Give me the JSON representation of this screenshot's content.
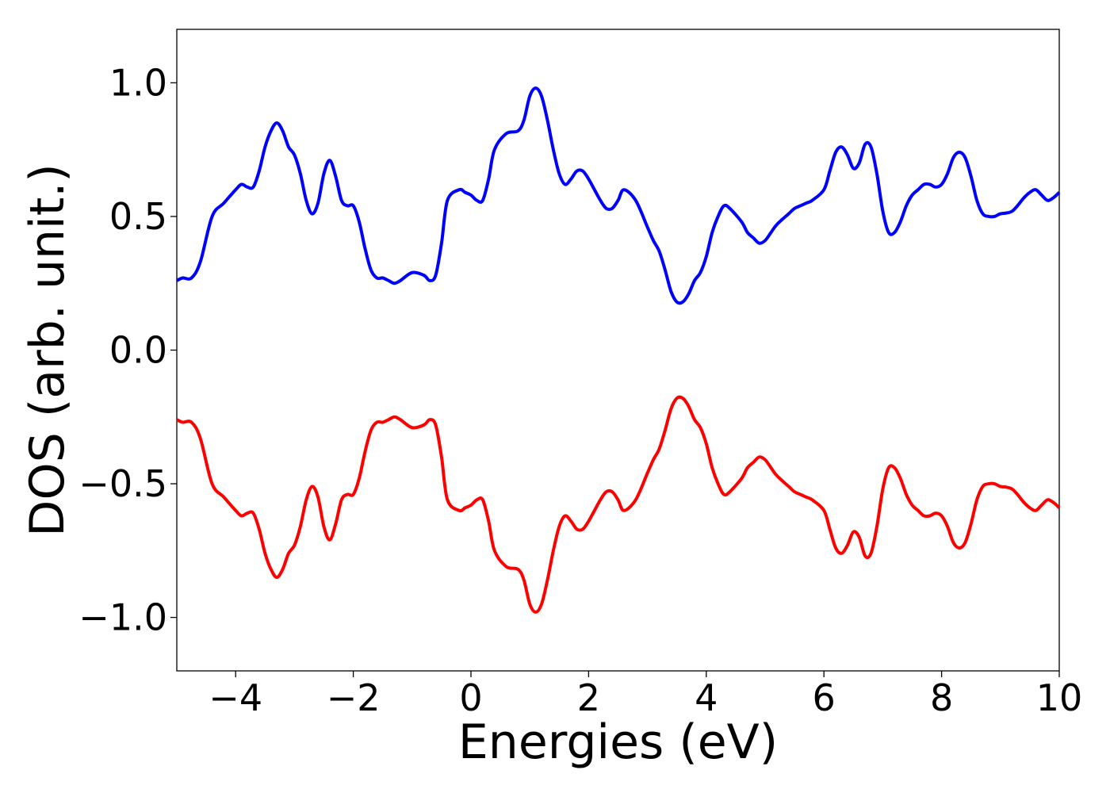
{
  "chart_data": {
    "type": "line",
    "title": "",
    "xlabel": "Energies (eV)",
    "ylabel": "DOS (arb. unit.)",
    "xlim": [
      -5,
      10
    ],
    "ylim": [
      -1.2,
      1.2
    ],
    "xticks": [
      -4,
      -2,
      0,
      2,
      4,
      6,
      8,
      10
    ],
    "xtick_labels": [
      "−4",
      "−2",
      "0",
      "2",
      "4",
      "6",
      "8",
      "10"
    ],
    "yticks": [
      -1.0,
      -0.5,
      0.0,
      0.5,
      1.0
    ],
    "ytick_labels": [
      "−1.0",
      "−0.5",
      "0.0",
      "0.5",
      "1.0"
    ],
    "grid": false,
    "legend": "none",
    "series": [
      {
        "color": "#0000ff",
        "x": [
          -5.0,
          -4.9,
          -4.75,
          -4.6,
          -4.4,
          -4.2,
          -4.0,
          -3.9,
          -3.8,
          -3.7,
          -3.6,
          -3.5,
          -3.4,
          -3.3,
          -3.2,
          -3.1,
          -3.0,
          -2.9,
          -2.8,
          -2.7,
          -2.6,
          -2.5,
          -2.4,
          -2.3,
          -2.2,
          -2.1,
          -2.0,
          -1.9,
          -1.8,
          -1.7,
          -1.6,
          -1.5,
          -1.4,
          -1.3,
          -1.2,
          -1.0,
          -0.8,
          -0.7,
          -0.6,
          -0.5,
          -0.4,
          -0.2,
          -0.1,
          0.0,
          0.1,
          0.2,
          0.3,
          0.4,
          0.6,
          0.8,
          0.9,
          1.0,
          1.1,
          1.2,
          1.3,
          1.4,
          1.5,
          1.6,
          1.7,
          1.8,
          1.9,
          2.0,
          2.1,
          2.2,
          2.3,
          2.4,
          2.5,
          2.6,
          2.8,
          3.0,
          3.1,
          3.2,
          3.3,
          3.4,
          3.5,
          3.6,
          3.7,
          3.8,
          3.9,
          4.0,
          4.1,
          4.2,
          4.3,
          4.4,
          4.6,
          4.7,
          4.8,
          4.9,
          5.0,
          5.1,
          5.2,
          5.4,
          5.5,
          5.6,
          5.7,
          5.8,
          6.0,
          6.1,
          6.2,
          6.3,
          6.4,
          6.5,
          6.6,
          6.7,
          6.8,
          6.9,
          7.0,
          7.1,
          7.2,
          7.3,
          7.4,
          7.5,
          7.6,
          7.7,
          7.8,
          7.9,
          8.0,
          8.1,
          8.2,
          8.3,
          8.4,
          8.5,
          8.6,
          8.7,
          8.8,
          8.9,
          9.0,
          9.2,
          9.4,
          9.5,
          9.6,
          9.7,
          9.8,
          9.9,
          10.0
        ],
        "y": [
          0.26,
          0.27,
          0.27,
          0.33,
          0.5,
          0.55,
          0.6,
          0.62,
          0.61,
          0.61,
          0.67,
          0.76,
          0.82,
          0.85,
          0.82,
          0.76,
          0.73,
          0.66,
          0.56,
          0.51,
          0.55,
          0.66,
          0.71,
          0.65,
          0.56,
          0.54,
          0.54,
          0.48,
          0.38,
          0.3,
          0.27,
          0.27,
          0.26,
          0.25,
          0.26,
          0.29,
          0.28,
          0.26,
          0.28,
          0.4,
          0.56,
          0.6,
          0.59,
          0.58,
          0.56,
          0.56,
          0.64,
          0.75,
          0.81,
          0.82,
          0.86,
          0.95,
          0.98,
          0.95,
          0.86,
          0.75,
          0.66,
          0.62,
          0.64,
          0.67,
          0.67,
          0.64,
          0.6,
          0.56,
          0.53,
          0.53,
          0.56,
          0.6,
          0.56,
          0.46,
          0.41,
          0.37,
          0.3,
          0.22,
          0.18,
          0.18,
          0.21,
          0.26,
          0.29,
          0.35,
          0.44,
          0.5,
          0.54,
          0.53,
          0.48,
          0.44,
          0.42,
          0.4,
          0.41,
          0.44,
          0.47,
          0.51,
          0.53,
          0.54,
          0.55,
          0.56,
          0.6,
          0.67,
          0.74,
          0.76,
          0.73,
          0.68,
          0.7,
          0.77,
          0.76,
          0.66,
          0.52,
          0.44,
          0.44,
          0.48,
          0.54,
          0.58,
          0.6,
          0.62,
          0.62,
          0.61,
          0.62,
          0.66,
          0.72,
          0.74,
          0.72,
          0.65,
          0.56,
          0.51,
          0.5,
          0.5,
          0.51,
          0.52,
          0.57,
          0.59,
          0.6,
          0.58,
          0.56,
          0.57,
          0.59
        ],
        "mirror": false
      },
      {
        "color": "#ff0000",
        "x": [
          -5.0,
          -4.9,
          -4.75,
          -4.6,
          -4.4,
          -4.2,
          -4.0,
          -3.9,
          -3.8,
          -3.7,
          -3.6,
          -3.5,
          -3.4,
          -3.3,
          -3.2,
          -3.1,
          -3.0,
          -2.9,
          -2.8,
          -2.7,
          -2.6,
          -2.5,
          -2.4,
          -2.3,
          -2.2,
          -2.1,
          -2.0,
          -1.9,
          -1.8,
          -1.7,
          -1.6,
          -1.5,
          -1.4,
          -1.3,
          -1.2,
          -1.0,
          -0.8,
          -0.7,
          -0.6,
          -0.5,
          -0.4,
          -0.2,
          -0.1,
          0.0,
          0.1,
          0.2,
          0.3,
          0.4,
          0.6,
          0.8,
          0.9,
          1.0,
          1.1,
          1.2,
          1.3,
          1.4,
          1.5,
          1.6,
          1.7,
          1.8,
          1.9,
          2.0,
          2.1,
          2.2,
          2.3,
          2.4,
          2.5,
          2.6,
          2.8,
          3.0,
          3.1,
          3.2,
          3.3,
          3.4,
          3.5,
          3.6,
          3.7,
          3.8,
          3.9,
          4.0,
          4.1,
          4.2,
          4.3,
          4.4,
          4.6,
          4.7,
          4.8,
          4.9,
          5.0,
          5.1,
          5.2,
          5.4,
          5.5,
          5.6,
          5.7,
          5.8,
          6.0,
          6.1,
          6.2,
          6.3,
          6.4,
          6.5,
          6.6,
          6.7,
          6.8,
          6.9,
          7.0,
          7.1,
          7.2,
          7.3,
          7.4,
          7.5,
          7.6,
          7.7,
          7.8,
          7.9,
          8.0,
          8.1,
          8.2,
          8.3,
          8.4,
          8.5,
          8.6,
          8.7,
          8.8,
          8.9,
          9.0,
          9.2,
          9.4,
          9.5,
          9.6,
          9.7,
          9.8,
          9.9,
          10.0
        ],
        "y": [
          -0.26,
          -0.27,
          -0.27,
          -0.33,
          -0.5,
          -0.55,
          -0.6,
          -0.62,
          -0.61,
          -0.61,
          -0.67,
          -0.76,
          -0.82,
          -0.85,
          -0.82,
          -0.76,
          -0.73,
          -0.66,
          -0.56,
          -0.51,
          -0.55,
          -0.66,
          -0.71,
          -0.65,
          -0.56,
          -0.54,
          -0.54,
          -0.48,
          -0.38,
          -0.3,
          -0.27,
          -0.27,
          -0.26,
          -0.25,
          -0.26,
          -0.29,
          -0.28,
          -0.26,
          -0.28,
          -0.4,
          -0.56,
          -0.6,
          -0.59,
          -0.58,
          -0.56,
          -0.56,
          -0.64,
          -0.75,
          -0.81,
          -0.82,
          -0.86,
          -0.95,
          -0.98,
          -0.95,
          -0.86,
          -0.75,
          -0.66,
          -0.62,
          -0.64,
          -0.67,
          -0.67,
          -0.64,
          -0.6,
          -0.56,
          -0.53,
          -0.53,
          -0.56,
          -0.6,
          -0.56,
          -0.46,
          -0.41,
          -0.37,
          -0.3,
          -0.22,
          -0.18,
          -0.18,
          -0.21,
          -0.26,
          -0.29,
          -0.35,
          -0.44,
          -0.5,
          -0.54,
          -0.53,
          -0.48,
          -0.44,
          -0.42,
          -0.4,
          -0.41,
          -0.44,
          -0.47,
          -0.51,
          -0.53,
          -0.54,
          -0.55,
          -0.56,
          -0.6,
          -0.67,
          -0.74,
          -0.76,
          -0.73,
          -0.68,
          -0.7,
          -0.77,
          -0.76,
          -0.66,
          -0.52,
          -0.44,
          -0.44,
          -0.48,
          -0.54,
          -0.58,
          -0.6,
          -0.62,
          -0.62,
          -0.61,
          -0.62,
          -0.66,
          -0.72,
          -0.74,
          -0.72,
          -0.65,
          -0.56,
          -0.51,
          -0.5,
          -0.5,
          -0.51,
          -0.52,
          -0.57,
          -0.59,
          -0.6,
          -0.58,
          -0.56,
          -0.57,
          -0.59
        ],
        "mirror": true
      }
    ]
  }
}
